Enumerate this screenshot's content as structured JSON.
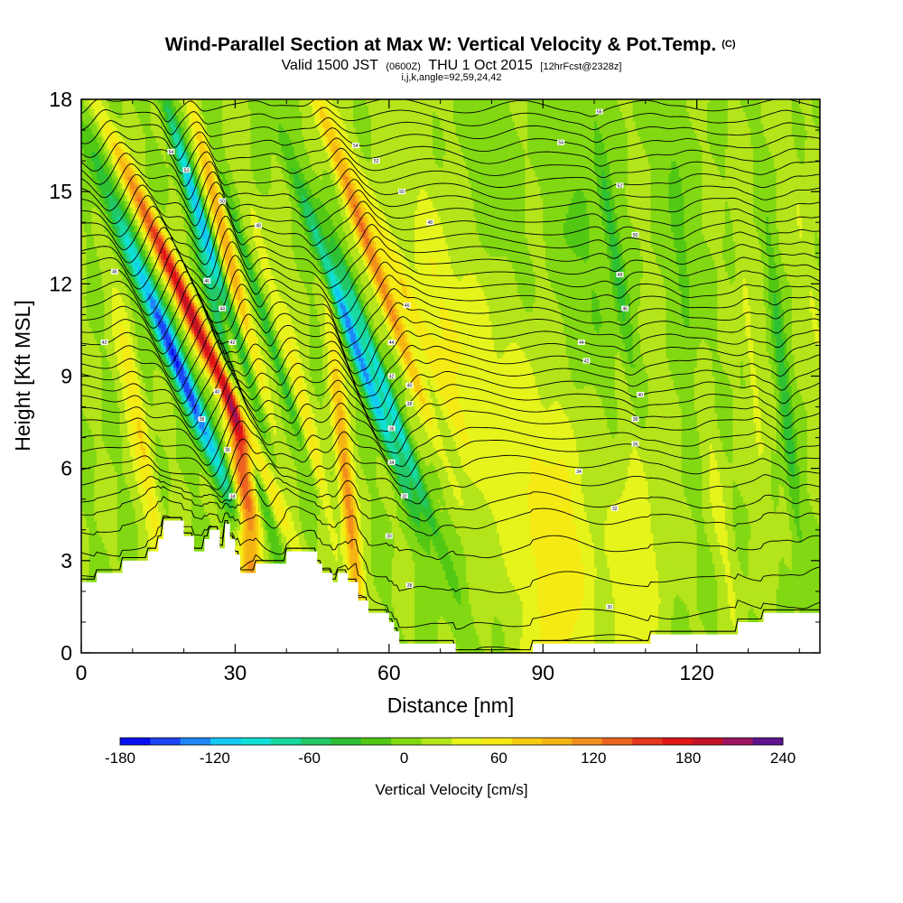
{
  "title": "Wind-Parallel Section at Max W: Vertical Velocity & Pot.Temp.",
  "title_mark": "(C)",
  "subtitle": {
    "prefix": "Valid 1500 JST",
    "utc": "(0600Z)",
    "date": "THU 1 Oct 2015",
    "forecast": "[12hrFcst@2328z]"
  },
  "params": "i,j,k,angle=92,59,24,42",
  "chart_data": {
    "type": "heatmap",
    "xlabel": "Distance [nm]",
    "ylabel": "Height [Kft MSL]",
    "xlim": [
      0,
      144
    ],
    "ylim": [
      0,
      18
    ],
    "x_ticks": [
      0,
      30,
      60,
      90,
      120
    ],
    "x_tick_labels": [
      "0",
      "30",
      "60",
      "90",
      "120"
    ],
    "y_ticks": [
      0,
      3,
      6,
      9,
      12,
      15,
      18
    ],
    "y_tick_labels": [
      "0",
      "3",
      "6",
      "9",
      "12",
      "15",
      "18"
    ],
    "colorbar": {
      "label": "Vertical Velocity [cm/s]",
      "min": -180,
      "max": 240,
      "step": 20,
      "tick_values": [
        -180,
        -120,
        -60,
        0,
        60,
        120,
        180,
        240
      ],
      "tick_labels": [
        "-180",
        "-120",
        "-60",
        "0",
        "60",
        "120",
        "180",
        "240"
      ],
      "colors": [
        "#0a10f0",
        "#1c46f4",
        "#1f86f5",
        "#12c8f2",
        "#10dfd8",
        "#18d8a0",
        "#22c866",
        "#2ec032",
        "#52c814",
        "#82d812",
        "#b4e41a",
        "#e6f41c",
        "#f6ea14",
        "#f8cc0e",
        "#f6b414",
        "#f28e1c",
        "#ec6420",
        "#e6381e",
        "#e01414",
        "#c01428",
        "#9c1462",
        "#5e148c"
      ]
    },
    "terrain_kft": [
      [
        0,
        2.3
      ],
      [
        3,
        2.3
      ],
      [
        3,
        2.6
      ],
      [
        8,
        2.6
      ],
      [
        8,
        3.0
      ],
      [
        13,
        3.0
      ],
      [
        13,
        3.3
      ],
      [
        15,
        3.3
      ],
      [
        15,
        3.7
      ],
      [
        16,
        3.7
      ],
      [
        16,
        4.3
      ],
      [
        20,
        4.3
      ],
      [
        20,
        3.8
      ],
      [
        22,
        3.8
      ],
      [
        22,
        3.3
      ],
      [
        24,
        3.3
      ],
      [
        24,
        3.7
      ],
      [
        25,
        3.7
      ],
      [
        25,
        4.0
      ],
      [
        27,
        4.0
      ],
      [
        27,
        3.4
      ],
      [
        28,
        3.4
      ],
      [
        28,
        4.2
      ],
      [
        29,
        4.2
      ],
      [
        29,
        3.7
      ],
      [
        30,
        3.7
      ],
      [
        30,
        3.2
      ],
      [
        31,
        3.2
      ],
      [
        31,
        2.6
      ],
      [
        34,
        2.6
      ],
      [
        34,
        2.9
      ],
      [
        40,
        2.9
      ],
      [
        40,
        3.3
      ],
      [
        46,
        3.3
      ],
      [
        46,
        2.9
      ],
      [
        47,
        2.9
      ],
      [
        47,
        2.6
      ],
      [
        49,
        2.6
      ],
      [
        49,
        2.3
      ],
      [
        50,
        2.3
      ],
      [
        50,
        2.6
      ],
      [
        52,
        2.6
      ],
      [
        52,
        2.3
      ],
      [
        54,
        2.3
      ],
      [
        54,
        1.7
      ],
      [
        56,
        1.7
      ],
      [
        56,
        1.3
      ],
      [
        60,
        1.3
      ],
      [
        60,
        1.0
      ],
      [
        61,
        1.0
      ],
      [
        61,
        0.7
      ],
      [
        62,
        0.7
      ],
      [
        62,
        0.3
      ],
      [
        73,
        0.3
      ],
      [
        73,
        0.0
      ],
      [
        88,
        0.0
      ],
      [
        88,
        0.3
      ],
      [
        111,
        0.3
      ],
      [
        111,
        0.6
      ],
      [
        128,
        0.6
      ],
      [
        128,
        1.0
      ],
      [
        133,
        1.0
      ],
      [
        133,
        1.3
      ],
      [
        144,
        1.3
      ]
    ],
    "updrafts": [
      {
        "x": 21.5,
        "z": 11.0,
        "tilt": -0.9,
        "w": 1.8,
        "amp": 190
      },
      {
        "x": 32.0,
        "z": 5.0,
        "tilt": -0.2,
        "w": 2.2,
        "amp": 140
      },
      {
        "x": 28.0,
        "z": 13.5,
        "tilt": -0.5,
        "w": 1.4,
        "amp": 90
      },
      {
        "x": 56.5,
        "z": 13.0,
        "tilt": -0.7,
        "w": 1.6,
        "amp": 120
      },
      {
        "x": 52.0,
        "z": 5.0,
        "tilt": -0.2,
        "w": 1.5,
        "amp": 110
      },
      {
        "x": 62.5,
        "z": 12.0,
        "tilt": -0.8,
        "w": 2.0,
        "amp": 50
      },
      {
        "x": 8.5,
        "z": 9.5,
        "tilt": -0.3,
        "w": 1.8,
        "amp": 45
      },
      {
        "x": 13.0,
        "z": 6.0,
        "tilt": -0.3,
        "w": 1.3,
        "amp": 40
      },
      {
        "x": 40.0,
        "z": 10.0,
        "tilt": -0.5,
        "w": 1.5,
        "amp": 35
      },
      {
        "x": 45.0,
        "z": 7.0,
        "tilt": -0.4,
        "w": 1.2,
        "amp": 25
      },
      {
        "x": 72.0,
        "z": 10.5,
        "tilt": -0.5,
        "w": 5.0,
        "amp": 40
      },
      {
        "x": 84.0,
        "z": 9.0,
        "tilt": -0.4,
        "w": 6.0,
        "amp": 30
      },
      {
        "x": 93.0,
        "z": 2.0,
        "tilt": 0.0,
        "w": 7.0,
        "amp": 50
      },
      {
        "x": 108.0,
        "z": 2.5,
        "tilt": 0.0,
        "w": 5.0,
        "amp": 35
      },
      {
        "x": 124.0,
        "z": 5.0,
        "tilt": -0.3,
        "w": 2.0,
        "amp": 25
      },
      {
        "x": 131.0,
        "z": 9.0,
        "tilt": -0.2,
        "w": 1.2,
        "amp": 30
      },
      {
        "x": 142.0,
        "z": 12.0,
        "tilt": -0.3,
        "w": 1.5,
        "amp": 25
      }
    ],
    "downdrafts": [
      {
        "x": 18.5,
        "z": 9.5,
        "tilt": -0.8,
        "w": 2.0,
        "amp": 180
      },
      {
        "x": 24.5,
        "z": 13.5,
        "tilt": -0.6,
        "w": 1.3,
        "amp": 130
      },
      {
        "x": 29.5,
        "z": 9.0,
        "tilt": -0.5,
        "w": 1.3,
        "amp": 110
      },
      {
        "x": 53.5,
        "z": 10.0,
        "tilt": -0.7,
        "w": 1.6,
        "amp": 150
      },
      {
        "x": 59.5,
        "z": 8.5,
        "tilt": -0.7,
        "w": 1.3,
        "amp": 110
      },
      {
        "x": 35.5,
        "z": 11.0,
        "tilt": -0.6,
        "w": 1.0,
        "amp": 60
      },
      {
        "x": 104.0,
        "z": 13.0,
        "tilt": -0.3,
        "w": 1.5,
        "amp": 55
      },
      {
        "x": 117.0,
        "z": 13.0,
        "tilt": -0.2,
        "w": 2.0,
        "amp": 35
      },
      {
        "x": 137.0,
        "z": 8.5,
        "tilt": -0.2,
        "w": 1.3,
        "amp": 55
      },
      {
        "x": 97.0,
        "z": 13.0,
        "tilt": -0.3,
        "w": 4.0,
        "amp": 25
      },
      {
        "x": 80.0,
        "z": 15.0,
        "tilt": -0.3,
        "w": 4.0,
        "amp": 25
      },
      {
        "x": 5.0,
        "z": 14.0,
        "tilt": -0.3,
        "w": 2.0,
        "amp": 30
      }
    ],
    "theta_contours": {
      "z_base": [
        0.3,
        0.9,
        1.6,
        2.6,
        3.6,
        4.4,
        4.9,
        5.5,
        6.0,
        6.5,
        6.9,
        7.4,
        7.8,
        8.2,
        8.6,
        9.0,
        9.4,
        9.8,
        10.2,
        10.6,
        11.0,
        11.4,
        11.8,
        12.2,
        12.6,
        13.0,
        13.4,
        13.8,
        14.2,
        14.6,
        15.0,
        15.4,
        15.8,
        16.2,
        16.6,
        17.0,
        17.4,
        17.8
      ]
    },
    "contour_labels": [
      {
        "x": 17.5,
        "z": 16.3,
        "text": "54"
      },
      {
        "x": 20.5,
        "z": 15.7,
        "text": "53"
      },
      {
        "x": 27.5,
        "z": 14.7,
        "text": "50"
      },
      {
        "x": 34.5,
        "z": 13.9,
        "text": "48"
      },
      {
        "x": 24.5,
        "z": 12.1,
        "text": "46"
      },
      {
        "x": 27.5,
        "z": 11.2,
        "text": "44"
      },
      {
        "x": 29.5,
        "z": 10.1,
        "text": "42"
      },
      {
        "x": 26.5,
        "z": 8.5,
        "text": "40"
      },
      {
        "x": 23.5,
        "z": 7.6,
        "text": "38"
      },
      {
        "x": 28.5,
        "z": 6.6,
        "text": "36"
      },
      {
        "x": 29.5,
        "z": 5.1,
        "text": "34"
      },
      {
        "x": 53.5,
        "z": 16.5,
        "text": "54"
      },
      {
        "x": 57.5,
        "z": 16.0,
        "text": "52"
      },
      {
        "x": 62.5,
        "z": 15.0,
        "text": "50"
      },
      {
        "x": 68.0,
        "z": 14.0,
        "text": "48"
      },
      {
        "x": 63.5,
        "z": 11.3,
        "text": "46"
      },
      {
        "x": 60.5,
        "z": 10.1,
        "text": "44"
      },
      {
        "x": 60.5,
        "z": 9.0,
        "text": "42"
      },
      {
        "x": 64.0,
        "z": 8.7,
        "text": "40"
      },
      {
        "x": 64.0,
        "z": 8.1,
        "text": "38"
      },
      {
        "x": 60.5,
        "z": 7.3,
        "text": "36"
      },
      {
        "x": 60.5,
        "z": 6.2,
        "text": "34"
      },
      {
        "x": 63.0,
        "z": 5.1,
        "text": "32"
      },
      {
        "x": 60.0,
        "z": 3.8,
        "text": "30"
      },
      {
        "x": 64.0,
        "z": 2.2,
        "text": "28"
      },
      {
        "x": 6.5,
        "z": 12.4,
        "text": "46"
      },
      {
        "x": 4.5,
        "z": 10.1,
        "text": "42"
      },
      {
        "x": 101.0,
        "z": 17.6,
        "text": "56"
      },
      {
        "x": 93.5,
        "z": 16.6,
        "text": "54"
      },
      {
        "x": 105.0,
        "z": 15.2,
        "text": "52"
      },
      {
        "x": 108.0,
        "z": 13.6,
        "text": "50"
      },
      {
        "x": 105.0,
        "z": 12.3,
        "text": "48"
      },
      {
        "x": 106.0,
        "z": 11.2,
        "text": "46"
      },
      {
        "x": 97.5,
        "z": 10.1,
        "text": "44"
      },
      {
        "x": 98.5,
        "z": 9.5,
        "text": "42"
      },
      {
        "x": 109.0,
        "z": 8.4,
        "text": "40"
      },
      {
        "x": 108.0,
        "z": 7.6,
        "text": "38"
      },
      {
        "x": 108.0,
        "z": 6.8,
        "text": "36"
      },
      {
        "x": 97.0,
        "z": 5.9,
        "text": "34"
      },
      {
        "x": 104.0,
        "z": 4.7,
        "text": "32"
      },
      {
        "x": 103.0,
        "z": 1.5,
        "text": "30"
      }
    ]
  }
}
